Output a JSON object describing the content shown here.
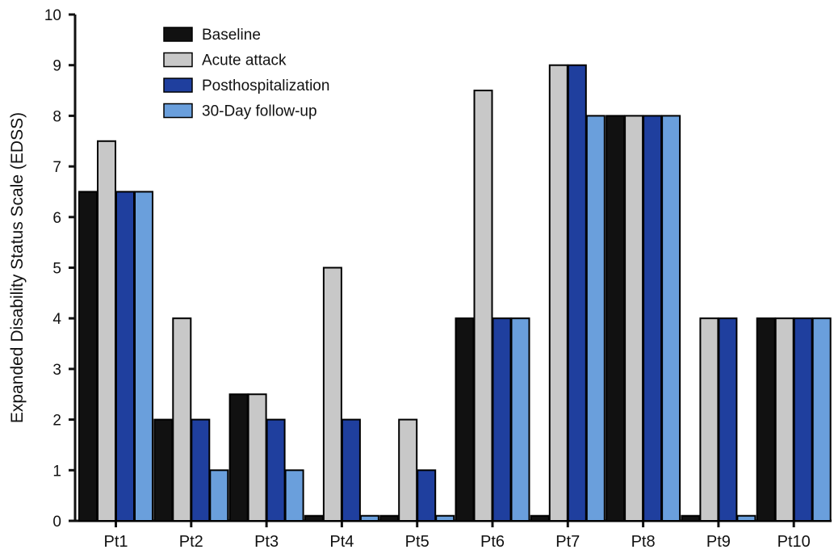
{
  "chart_data": {
    "type": "bar",
    "title": "",
    "xlabel": "",
    "ylabel": "Expanded Disability Status Scale (EDSS)",
    "ylim": [
      0,
      10
    ],
    "yticks": [
      "0",
      "1",
      "2",
      "3",
      "4",
      "5",
      "6",
      "7",
      "8",
      "9",
      "10"
    ],
    "grid": false,
    "legend_position": "top-left",
    "categories": [
      "Pt1",
      "Pt2",
      "Pt3",
      "Pt4",
      "Pt5",
      "Pt6",
      "Pt7",
      "Pt8",
      "Pt9",
      "Pt10"
    ],
    "series": [
      {
        "name": "Baseline",
        "color": "#111111",
        "values": [
          6.5,
          2,
          2.5,
          0.1,
          0.1,
          4,
          0.1,
          8,
          0.1,
          4
        ]
      },
      {
        "name": "Acute attack",
        "color": "#c8c8c8",
        "values": [
          7.5,
          4,
          2.5,
          5,
          2,
          8.5,
          9,
          8,
          4,
          4
        ]
      },
      {
        "name": "Posthospitalization",
        "color": "#1f3f9e",
        "values": [
          6.5,
          2,
          2,
          2,
          1,
          4,
          9,
          8,
          4,
          4
        ]
      },
      {
        "name": "30-Day follow-up",
        "color": "#6a9fdc",
        "values": [
          6.5,
          1,
          1,
          0.1,
          0.1,
          4,
          8,
          8,
          0.1,
          4
        ]
      }
    ]
  }
}
